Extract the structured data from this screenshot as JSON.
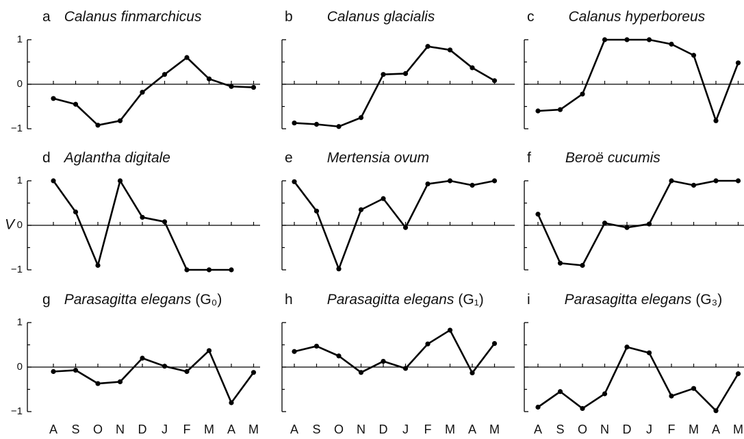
{
  "chart_data": [
    {
      "type": "line",
      "letter": "a",
      "title": "Calanus finmarchicus",
      "categories": [
        null,
        null,
        null,
        null,
        null,
        null,
        null,
        null,
        null,
        null
      ],
      "values": [
        -0.32,
        -0.45,
        -0.92,
        -0.82,
        -0.18,
        0.22,
        0.6,
        0.12,
        -0.05,
        -0.07
      ],
      "color": "#000000",
      "ylim": [
        -1.1,
        1.1
      ],
      "yticks": [
        {
          "value": -1,
          "label": "−1"
        },
        0,
        1
      ],
      "yminorticks": [
        -0.5,
        0.5
      ],
      "ytick_labels": true,
      "zero_line": true
    },
    {
      "type": "line",
      "letter": "b",
      "title": "Calanus glacialis",
      "categories": [
        null,
        null,
        null,
        null,
        null,
        null,
        null,
        null,
        null,
        null
      ],
      "values": [
        -0.87,
        -0.9,
        -0.95,
        -0.75,
        0.22,
        0.24,
        0.85,
        0.77,
        0.37,
        0.08
      ],
      "color": "#000000",
      "ylim": [
        -1.1,
        1.1
      ],
      "yticks": [
        -1,
        0,
        1
      ],
      "yminorticks": [
        -0.5,
        0.5
      ],
      "ytick_labels": false,
      "zero_line": true
    },
    {
      "type": "line",
      "letter": "c",
      "title": "Calanus hyperboreus",
      "categories": [
        null,
        null,
        null,
        null,
        null,
        null,
        null,
        null,
        null,
        null
      ],
      "values": [
        -0.6,
        -0.57,
        -0.22,
        1,
        1,
        1,
        0.9,
        0.65,
        -0.82,
        0.48
      ],
      "color": "#000000",
      "ylim": [
        -1.1,
        1.1
      ],
      "yticks": [
        -1,
        0,
        1
      ],
      "yminorticks": [
        -0.5,
        0.5
      ],
      "ytick_labels": false,
      "zero_line": true
    },
    {
      "type": "line",
      "letter": "d",
      "title": "Aglantha digitale",
      "ylabel": "V",
      "categories": [
        null,
        null,
        null,
        null,
        null,
        null,
        null,
        null,
        null,
        null
      ],
      "values": [
        1,
        0.3,
        -0.9,
        1,
        0.18,
        0.08,
        -1,
        -1,
        -1,
        null
      ],
      "color": "#000000",
      "ylim": [
        -1.1,
        1.1
      ],
      "yticks": [
        {
          "value": -1,
          "label": "−1"
        },
        0,
        1
      ],
      "yminorticks": [
        -0.5,
        0.5
      ],
      "ytick_labels": true,
      "zero_line": true
    },
    {
      "type": "line",
      "letter": "e",
      "title": "Mertensia ovum",
      "categories": [
        null,
        null,
        null,
        null,
        null,
        null,
        null,
        null,
        null,
        null
      ],
      "values": [
        0.98,
        0.32,
        -0.98,
        0.35,
        0.6,
        -0.05,
        0.93,
        1,
        0.9,
        1
      ],
      "color": "#000000",
      "ylim": [
        -1.1,
        1.1
      ],
      "yticks": [
        -1,
        0,
        1
      ],
      "yminorticks": [
        -0.5,
        0.5
      ],
      "ytick_labels": false,
      "zero_line": true
    },
    {
      "type": "line",
      "letter": "f",
      "title": "Beroë cucumis",
      "categories": [
        null,
        null,
        null,
        null,
        null,
        null,
        null,
        null,
        null,
        null
      ],
      "values": [
        0.25,
        -0.85,
        -0.9,
        0.05,
        -0.05,
        0.03,
        1,
        0.9,
        1,
        1
      ],
      "color": "#000000",
      "ylim": [
        -1.1,
        1.1
      ],
      "yticks": [
        -1,
        0,
        1
      ],
      "yminorticks": [
        -0.5,
        0.5
      ],
      "ytick_labels": false,
      "zero_line": true
    },
    {
      "type": "line",
      "letter": "g",
      "title": "Parasagitta elegans",
      "title_suffix": "(G₀)",
      "categories": [
        "A",
        "S",
        "O",
        "N",
        "D",
        "J",
        "F",
        "M",
        "A",
        "M"
      ],
      "values": [
        -0.1,
        -0.07,
        -0.37,
        -0.33,
        0.2,
        0.02,
        -0.1,
        0.37,
        -0.8,
        -0.12
      ],
      "color": "#000000",
      "ylim": [
        -1.1,
        1.1
      ],
      "yticks": [
        {
          "value": -1,
          "label": "−1"
        },
        0,
        1
      ],
      "yminorticks": [
        -0.5,
        0.5
      ],
      "ytick_labels": true,
      "zero_line": true
    },
    {
      "type": "line",
      "letter": "h",
      "title": "Parasagitta elegans",
      "title_suffix": "(G₁)",
      "categories": [
        "A",
        "S",
        "O",
        "N",
        "D",
        "J",
        "F",
        "M",
        "A",
        "M"
      ],
      "values": [
        0.35,
        0.47,
        0.25,
        -0.12,
        0.13,
        -0.03,
        0.52,
        0.83,
        -0.13,
        0.53
      ],
      "color": "#000000",
      "ylim": [
        -1.1,
        1.1
      ],
      "yticks": [
        -1,
        0,
        1
      ],
      "yminorticks": [
        -0.5,
        0.5
      ],
      "ytick_labels": false,
      "zero_line": true
    },
    {
      "type": "line",
      "letter": "i",
      "title": "Parasagitta elegans",
      "title_suffix": "(G₃)",
      "categories": [
        "A",
        "S",
        "O",
        "N",
        "D",
        "J",
        "F",
        "M",
        "A",
        "M"
      ],
      "values": [
        -0.9,
        -0.55,
        -0.93,
        -0.6,
        0.45,
        0.32,
        -0.65,
        -0.48,
        -0.98,
        -0.15
      ],
      "color": "#000000",
      "ylim": [
        -1.1,
        1.1
      ],
      "yticks": [
        -1,
        0,
        1
      ],
      "yminorticks": [
        -0.5,
        0.5
      ],
      "ytick_labels": false,
      "zero_line": true
    }
  ]
}
